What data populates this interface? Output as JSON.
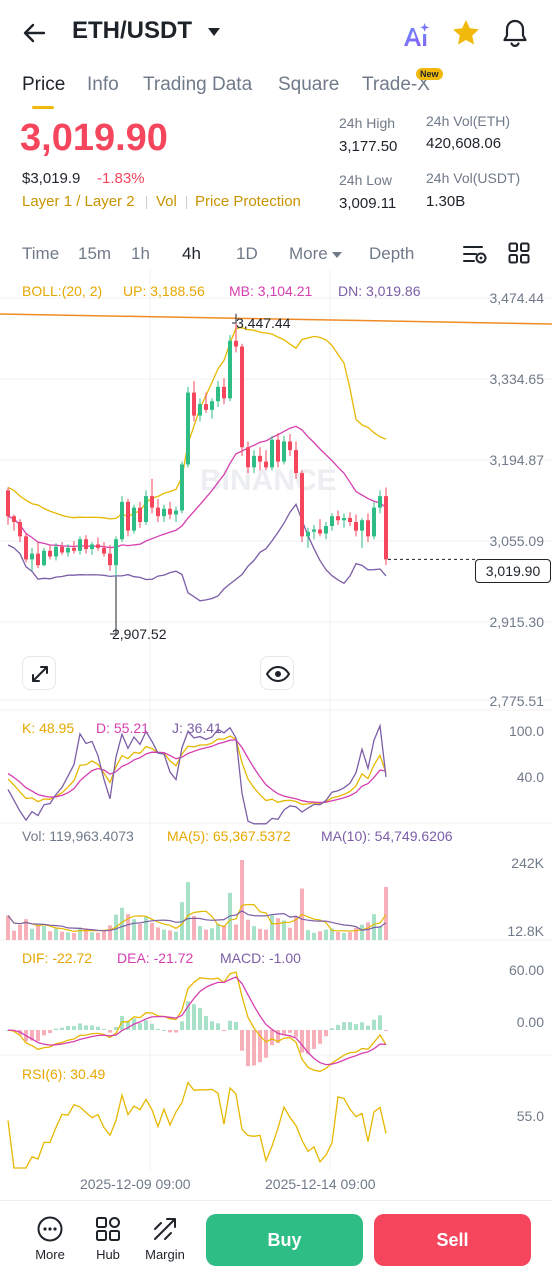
{
  "header": {
    "pair": "ETH/USDT",
    "icons": {
      "back": "back-arrow-icon",
      "caret": "caret-down-icon",
      "ai": "ai-sparkle-icon",
      "favorite": "star-icon",
      "notification": "bell-icon"
    }
  },
  "tabs": [
    {
      "label": "Price",
      "active": true
    },
    {
      "label": "Info"
    },
    {
      "label": "Trading Data"
    },
    {
      "label": "Square"
    },
    {
      "label": "Trade-X"
    }
  ],
  "new_badge": "New",
  "price": {
    "last": "3,019.90",
    "usd": "$3,019.9",
    "change": "-1.83%",
    "tags": [
      "Layer 1 / Layer 2",
      "Vol",
      "Price Protection"
    ]
  },
  "stats": {
    "high_label": "24h High",
    "high": "3,177.50",
    "low_label": "24h Low",
    "low": "3,009.11",
    "vol_eth_label": "24h Vol(ETH)",
    "vol_eth": "420,608.06",
    "vol_usdt_label": "24h Vol(USDT)",
    "vol_usdt": "1.30B"
  },
  "timeframes": [
    "Time",
    "15m",
    "1h",
    "4h",
    "1D",
    "More",
    "Depth"
  ],
  "active_timeframe": "4h",
  "indicators": {
    "boll": "BOLL:(20, 2)",
    "boll_up": "UP: 3,188.56",
    "boll_mb": "MB: 3,104.21",
    "boll_dn": "DN: 3,019.86",
    "kdj_k": "K: 48.95",
    "kdj_d": "D: 55.21",
    "kdj_j": "J: 36.41",
    "vol": "Vol: 119,963.4073",
    "vol_ma5": "MA(5): 65,367.5372",
    "vol_ma10": "MA(10): 54,749.6206",
    "macd_dif": "DIF: -22.72",
    "macd_dea": "DEA: -21.72",
    "macd_val": "MACD: -1.00",
    "rsi": "RSI(6): 30.49"
  },
  "y_axis_main": [
    "3,474.44",
    "3,334.65",
    "3,194.87",
    "3,055.09",
    "2,915.30",
    "2,775.51"
  ],
  "current_price_label": "3,019.90",
  "annotations": {
    "high": "3,447.44",
    "low": "2,907.52"
  },
  "y_axis_kdj": [
    "100.0",
    "40.0"
  ],
  "y_axis_vol": [
    "242K",
    "12.8K"
  ],
  "y_axis_macd": [
    "60.00",
    "0.00"
  ],
  "y_axis_rsi": [
    "55.0"
  ],
  "x_axis": [
    "2025-12-09 09:00",
    "2025-12-14 09:00"
  ],
  "watermark": "BINANCE",
  "bottom": {
    "more": "More",
    "hub": "Hub",
    "margin": "Margin",
    "buy": "Buy",
    "sell": "Sell"
  },
  "colors": {
    "up": "#2ebd85",
    "down": "#f6465d",
    "accent": "#f0b90b",
    "boll_up": "#e6b800",
    "boll_mb": "#d63fb0",
    "boll_dn": "#7b5ea7"
  },
  "chart_data": {
    "type": "candlestick",
    "y_range": [
      2775.51,
      3474.44
    ],
    "candles": [
      [
        3140,
        3145,
        3080,
        3095
      ],
      [
        3095,
        3098,
        3070,
        3085
      ],
      [
        3085,
        3090,
        3050,
        3060
      ],
      [
        3060,
        3065,
        3015,
        3020
      ],
      [
        3020,
        3040,
        3000,
        3030
      ],
      [
        3030,
        3050,
        3005,
        3010
      ],
      [
        3010,
        3040,
        3008,
        3035
      ],
      [
        3035,
        3045,
        3020,
        3025
      ],
      [
        3025,
        3048,
        3018,
        3042
      ],
      [
        3042,
        3050,
        3028,
        3032
      ],
      [
        3032,
        3046,
        3025,
        3040
      ],
      [
        3040,
        3052,
        3030,
        3035
      ],
      [
        3035,
        3060,
        3028,
        3055
      ],
      [
        3055,
        3062,
        3030,
        3038
      ],
      [
        3038,
        3050,
        3028,
        3046
      ],
      [
        3046,
        3058,
        3035,
        3040
      ],
      [
        3040,
        3050,
        3025,
        3030
      ],
      [
        3030,
        3045,
        3000,
        3010
      ],
      [
        3010,
        3060,
        2990,
        3055
      ],
      [
        3055,
        3130,
        3050,
        3120
      ],
      [
        3120,
        3125,
        3060,
        3070
      ],
      [
        3070,
        3115,
        3065,
        3110
      ],
      [
        3110,
        3120,
        3075,
        3085
      ],
      [
        3085,
        3140,
        3080,
        3130
      ],
      [
        3130,
        3160,
        3100,
        3110
      ],
      [
        3110,
        3125,
        3085,
        3095
      ],
      [
        3095,
        3115,
        3085,
        3108
      ],
      [
        3108,
        3120,
        3090,
        3098
      ],
      [
        3098,
        3112,
        3085,
        3105
      ],
      [
        3105,
        3190,
        3100,
        3185
      ],
      [
        3185,
        3320,
        3180,
        3310
      ],
      [
        3310,
        3330,
        3260,
        3270
      ],
      [
        3270,
        3300,
        3260,
        3290
      ],
      [
        3290,
        3310,
        3275,
        3280
      ],
      [
        3280,
        3300,
        3265,
        3295
      ],
      [
        3295,
        3330,
        3285,
        3320
      ],
      [
        3320,
        3335,
        3290,
        3300
      ],
      [
        3300,
        3410,
        3295,
        3400
      ],
      [
        3400,
        3447,
        3380,
        3390
      ],
      [
        3390,
        3395,
        3200,
        3215
      ],
      [
        3215,
        3225,
        3170,
        3180
      ],
      [
        3180,
        3210,
        3170,
        3200
      ],
      [
        3200,
        3215,
        3175,
        3190
      ],
      [
        3190,
        3210,
        3175,
        3180
      ],
      [
        3180,
        3235,
        3175,
        3228
      ],
      [
        3228,
        3240,
        3180,
        3190
      ],
      [
        3190,
        3235,
        3185,
        3225
      ],
      [
        3225,
        3238,
        3200,
        3210
      ],
      [
        3210,
        3225,
        3160,
        3170
      ],
      [
        3170,
        3175,
        3050,
        3060
      ],
      [
        3060,
        3075,
        3040,
        3068
      ],
      [
        3068,
        3080,
        3055,
        3072
      ],
      [
        3072,
        3090,
        3060,
        3065
      ],
      [
        3065,
        3085,
        3055,
        3078
      ],
      [
        3078,
        3100,
        3070,
        3095
      ],
      [
        3095,
        3105,
        3080,
        3088
      ],
      [
        3088,
        3100,
        3075,
        3092
      ],
      [
        3092,
        3102,
        3078,
        3085
      ],
      [
        3085,
        3098,
        3060,
        3070
      ],
      [
        3070,
        3092,
        3040,
        3088
      ],
      [
        3088,
        3100,
        3050,
        3060
      ],
      [
        3060,
        3120,
        3055,
        3110
      ],
      [
        3110,
        3140,
        3100,
        3130
      ],
      [
        3130,
        3145,
        3010,
        3020
      ]
    ]
  }
}
